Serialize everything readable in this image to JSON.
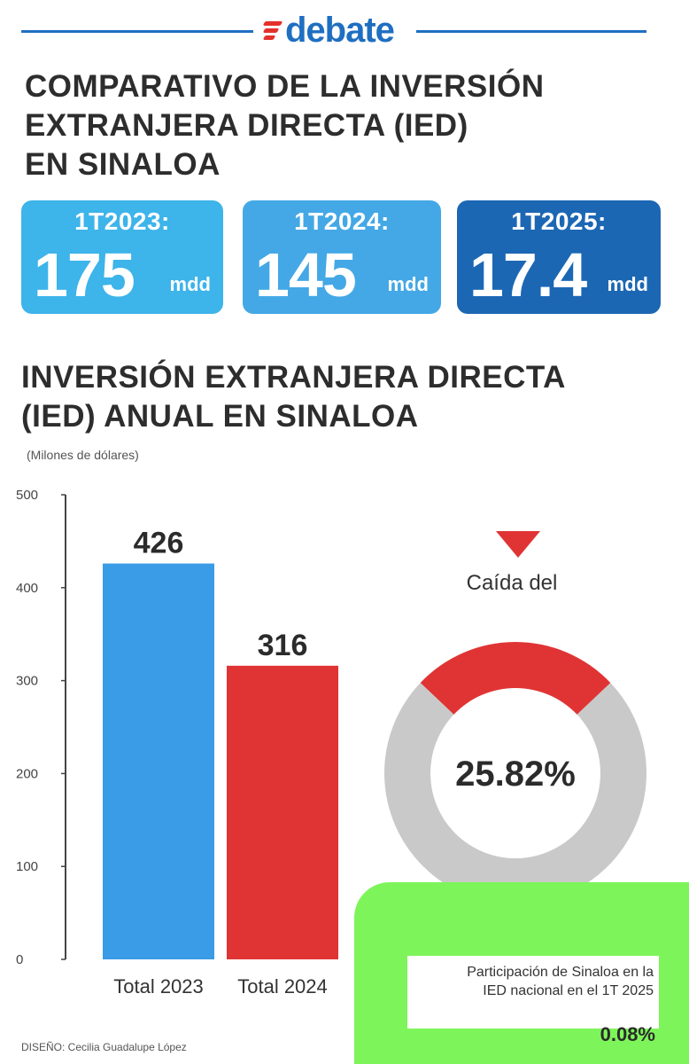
{
  "header": {
    "brand": "debate",
    "title_lines": [
      "COMPARATIVO DE LA INVERSIÓN",
      "EXTRANJERA DIRECTA (IED)",
      "EN SINALOA"
    ]
  },
  "quarters": [
    {
      "label": "1T2023:",
      "value": "175",
      "unit": "mdd",
      "color": "#3db4ea"
    },
    {
      "label": "1T2024:",
      "value": "145",
      "unit": "mdd",
      "color": "#44a8e6"
    },
    {
      "label": "1T2025:",
      "value": "17.4",
      "unit": "mdd",
      "color": "#1c67b4"
    }
  ],
  "chart_section": {
    "title_lines": [
      "INVERSIÓN EXTRANJERA DIRECTA",
      "(IED) ANUAL EN SINALOA"
    ],
    "units_note": "(Milones de dólares)"
  },
  "chart_data": [
    {
      "type": "bar",
      "title": "INVERSIÓN EXTRANJERA DIRECTA (IED) ANUAL EN SINALOA",
      "ylabel": "(Milones de dólares)",
      "categories": [
        "Total 2023",
        "Total 2024"
      ],
      "values": [
        426,
        316
      ],
      "data_labels": [
        "426",
        "316"
      ],
      "colors": [
        "#3a9be6",
        "#e03434"
      ],
      "ylim": [
        0,
        500
      ],
      "yticks": [
        "0",
        "100",
        "200",
        "300",
        "400",
        "500"
      ],
      "grid": false
    },
    {
      "type": "pie",
      "variant": "donut",
      "caption": "Caída del",
      "center_label": "25.82%",
      "values": [
        25.82,
        74.18
      ],
      "colors": [
        "#e03434",
        "#c9c9c9"
      ]
    }
  ],
  "note": {
    "lines": [
      "Participación de Sinaloa en la",
      "IED nacional en el 1T 2025"
    ],
    "value": "0.08%"
  },
  "credit": "DISEÑO: Cecilia Guadalupe López"
}
